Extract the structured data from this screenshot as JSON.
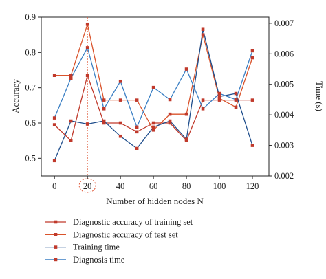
{
  "chart_data": {
    "type": "line",
    "xlabel": "Number of hidden nodes N",
    "ylabel_left": "Accuracy",
    "ylabel_right": "Time (s)",
    "xlim": [
      -8,
      130
    ],
    "ylim_left": [
      0.45,
      0.9
    ],
    "ylim_right": [
      0.002,
      0.0072
    ],
    "x_ticks": [
      0,
      20,
      40,
      60,
      80,
      100,
      120
    ],
    "y_left_ticks": [
      0.5,
      0.6,
      0.7,
      0.8,
      0.9
    ],
    "y_left_tick_labels": [
      "0.5",
      "0.6",
      "0.7",
      "0.8",
      "0.9"
    ],
    "y_right_ticks": [
      0.002,
      0.003,
      0.004,
      0.005,
      0.006,
      0.007
    ],
    "y_right_tick_labels": [
      "0.002",
      "0.003",
      "0.004",
      "0.005",
      "0.006",
      "0.007"
    ],
    "grid": false,
    "legend_position": "bottom",
    "x": [
      0,
      10,
      20,
      30,
      40,
      50,
      60,
      70,
      80,
      90,
      100,
      110,
      120
    ],
    "series": [
      {
        "name": "Diagnostic accuracy of training set",
        "axis": "left",
        "color": "#c0392b",
        "values": [
          0.595,
          0.55,
          0.735,
          0.6,
          0.6,
          0.575,
          0.6,
          0.6,
          0.55,
          0.665,
          0.665,
          0.665,
          0.665
        ]
      },
      {
        "name": "Diagnostic accuracy of test set",
        "axis": "left",
        "color": "#d9532b",
        "values": [
          0.735,
          0.735,
          0.88,
          0.665,
          0.665,
          0.665,
          0.58,
          0.625,
          0.625,
          0.85,
          0.67,
          0.645,
          0.785
        ]
      },
      {
        "name": "Training time",
        "axis": "right",
        "color": "#1f4e8c",
        "values": [
          0.0025,
          0.0038,
          0.0037,
          0.0038,
          0.0033,
          0.0029,
          0.0036,
          0.0038,
          0.0032,
          0.0068,
          0.0046,
          0.0047,
          0.003
        ]
      },
      {
        "name": "Diagnosis time",
        "axis": "right",
        "color": "#3a7fc4",
        "values": [
          0.0039,
          0.0052,
          0.0062,
          0.0042,
          0.0051,
          0.0036,
          0.0049,
          0.0045,
          0.0055,
          0.0042,
          0.0047,
          0.0045,
          0.0061
        ]
      }
    ],
    "highlight": {
      "x": 20,
      "label": "20",
      "color": "#e05a3a"
    }
  }
}
